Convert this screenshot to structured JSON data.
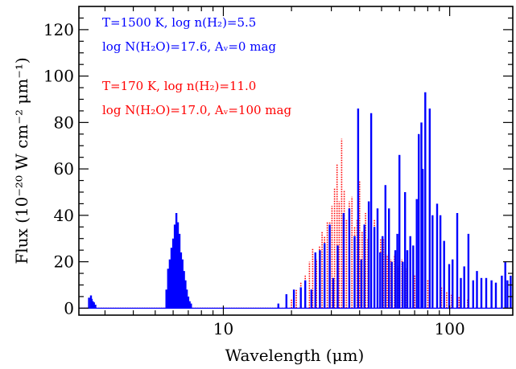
{
  "chart_data": {
    "type": "line",
    "title": "",
    "xlabel": "Wavelength (μm)",
    "ylabel": "Flux (10⁻²⁰ W cm⁻² μm⁻¹)",
    "x_scale": "log",
    "xlim": [
      2.3,
      190
    ],
    "ylim": [
      -3,
      130
    ],
    "x_ticks": [
      10,
      100
    ],
    "x_tick_labels": [
      "10",
      "100"
    ],
    "y_ticks": [
      0,
      20,
      40,
      60,
      80,
      100,
      120
    ],
    "y_tick_labels": [
      "0",
      "20",
      "40",
      "60",
      "80",
      "100",
      "120"
    ],
    "grid": false,
    "legend_position": "top-left",
    "legend": [
      {
        "line1": "T=1500 K, log n(H₂)=5.5",
        "line2": "log N(H₂O)=17.6, Aᵥ=0 mag",
        "color": "#0000ff"
      },
      {
        "line1": "T=170 K, log n(H₂)=11.0",
        "line2": "log N(H₂O)=17.0, Aᵥ=100 mag",
        "color": "#ff0000"
      }
    ],
    "series": [
      {
        "color": "#0000ff",
        "style": "solid",
        "lines_um": [
          2.55,
          2.6,
          2.62,
          2.65,
          2.68,
          2.72,
          5.6,
          5.7,
          5.8,
          5.9,
          6.0,
          6.1,
          6.2,
          6.3,
          6.4,
          6.5,
          6.6,
          6.7,
          6.8,
          6.9,
          7.0,
          7.1,
          7.2,
          17.5,
          19.0,
          20.5,
          22.0,
          23.0,
          24.5,
          25.5,
          26.7,
          28.0,
          29.5,
          30.6,
          32.0,
          34.0,
          36.0,
          38.0,
          39.4,
          40.7,
          42.0,
          43.9,
          45.0,
          46.5,
          48.0,
          49.3,
          50.5,
          52.0,
          53.9,
          55.5,
          57.5,
          58.7,
          60.0,
          62.0,
          63.5,
          65.0,
          67.0,
          69.0,
          71.5,
          73.0,
          75.0,
          76.0,
          78.0,
          81.6,
          84.0,
          88.0,
          91.0,
          94.5,
          99.5,
          103.0,
          108.0,
          112.0,
          116.0,
          121.0,
          127.0,
          132.0,
          138.0,
          145.0,
          153.0,
          160.0,
          170.0,
          176.0,
          180.0,
          186.0
        ],
        "peaks": [
          4.5,
          5.5,
          4,
          3,
          2.5,
          1.5,
          8,
          17,
          21,
          26,
          30,
          36,
          41,
          37,
          32,
          24,
          21,
          16,
          12,
          8,
          5,
          3,
          2,
          2,
          6,
          8,
          9,
          12,
          8,
          24,
          25,
          28,
          36,
          13,
          27,
          41,
          43,
          31,
          86,
          21,
          36,
          46,
          84,
          35,
          43,
          24,
          31,
          53,
          43,
          20,
          25,
          32,
          66,
          20,
          50,
          25,
          31,
          27,
          47,
          75,
          80,
          60,
          93,
          86,
          40,
          45,
          40,
          29,
          19,
          21,
          41,
          13,
          18,
          32,
          12,
          16,
          13,
          13,
          12,
          11,
          14,
          20,
          12,
          14
        ]
      },
      {
        "color": "#ff0000",
        "style": "dotted",
        "lines_um": [
          20.0,
          21.0,
          22.0,
          23.0,
          24.0,
          24.8,
          25.8,
          26.6,
          27.3,
          28.0,
          28.8,
          29.5,
          30.2,
          31.0,
          31.8,
          32.5,
          33.3,
          34.2,
          35.0,
          36.0,
          37.0,
          38.0,
          39.0,
          40.0,
          41.0,
          42.5,
          43.5,
          45.0,
          46.5,
          48.0,
          49.5,
          51.0,
          53.0,
          55.0,
          57.0,
          59.0,
          61.5,
          64.0,
          67.0,
          70.0,
          73.0,
          76.0,
          80.0,
          84.0,
          88.0,
          92.0,
          97.0,
          102.0,
          110.0,
          120.0
        ],
        "peaks": [
          4,
          8,
          11,
          14,
          20,
          26,
          21,
          27,
          33,
          31,
          37,
          37,
          44,
          52,
          62,
          46,
          73,
          51,
          38,
          46,
          48,
          35,
          38,
          55,
          33,
          41,
          30,
          26,
          38,
          30,
          30,
          30,
          23,
          21,
          23,
          18,
          21,
          17,
          15,
          14,
          12,
          14,
          12,
          10,
          8,
          9,
          7,
          6,
          5,
          4
        ]
      }
    ]
  }
}
